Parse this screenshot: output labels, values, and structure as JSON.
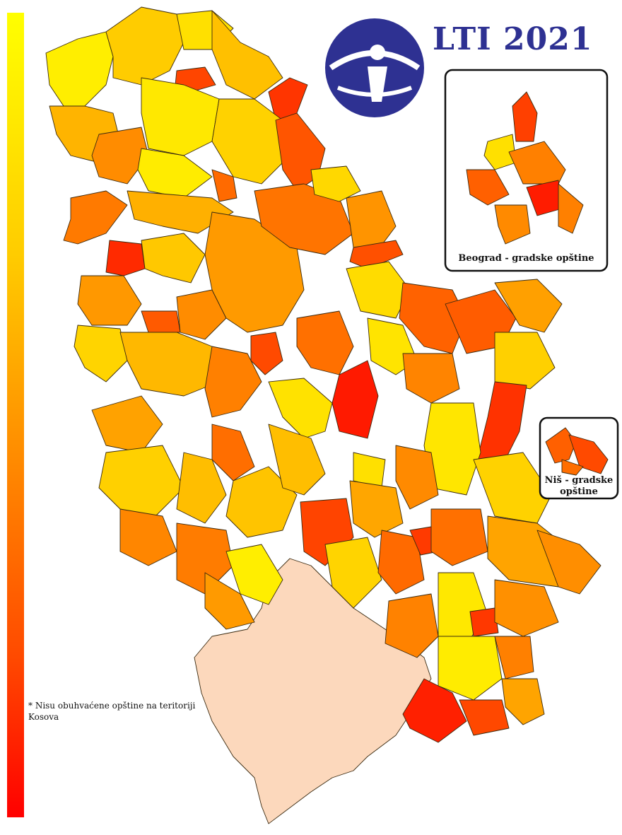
{
  "title": "LTI 2021",
  "legend": {
    "scale_colors": [
      "#ffff00",
      "#ffd000",
      "#ff9000",
      "#ff5a00",
      "#ff0000"
    ]
  },
  "insets": {
    "belgrade_label": "Beograd - gradske opštine",
    "nis_label_line1": "Niš - gradske",
    "nis_label_line2": "opštine"
  },
  "note": "* Nisu obuhvaćene opštine na teritoriji Kosova",
  "colors": {
    "excluded": "#fcd8bc",
    "brand": "#2e3192"
  },
  "icons": {
    "logo": "transparency-international-logo"
  }
}
